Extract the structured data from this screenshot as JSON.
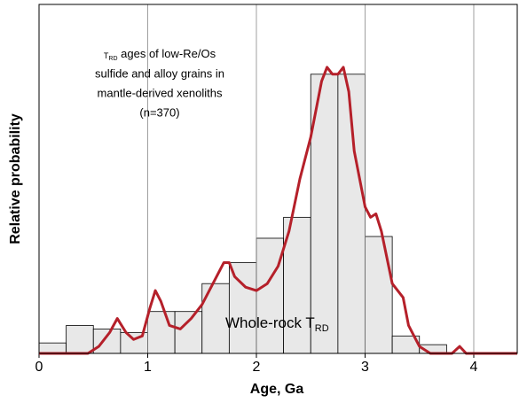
{
  "chart_data": {
    "type": "histogram",
    "xlabel": "Age, Ga",
    "ylabel": "Relative probability",
    "bins": [
      0,
      0.25,
      0.5,
      0.75,
      1.0,
      1.25,
      1.5,
      1.75,
      2.0,
      2.25,
      2.5,
      2.75,
      3.0,
      3.25,
      3.5,
      3.75
    ],
    "counts": [
      3,
      8,
      7,
      6,
      12,
      12,
      20,
      26,
      33,
      39,
      80,
      80,
      33.5,
      5,
      2.5
    ],
    "hist_color": "#e8e8e8",
    "curve": {
      "color": "#b5202a",
      "x": [
        0,
        0.45,
        0.55,
        0.65,
        0.72,
        0.8,
        0.87,
        0.95,
        1.02,
        1.07,
        1.12,
        1.2,
        1.3,
        1.4,
        1.5,
        1.6,
        1.7,
        1.75,
        1.8,
        1.9,
        2.0,
        2.1,
        2.2,
        2.3,
        2.4,
        2.5,
        2.6,
        2.65,
        2.7,
        2.75,
        2.8,
        2.85,
        2.9,
        3.0,
        3.05,
        3.1,
        3.15,
        3.25,
        3.35,
        3.4,
        3.5,
        3.6,
        3.8,
        3.87,
        3.93,
        4.4
      ],
      "values": [
        0,
        0,
        2,
        6,
        10,
        6,
        4,
        5,
        13,
        18,
        15,
        8,
        7,
        10,
        14,
        20,
        26,
        26,
        22,
        19,
        18,
        20,
        25,
        35,
        50,
        62,
        78,
        82,
        80,
        80,
        82,
        75,
        58,
        42,
        39,
        40,
        35,
        20,
        16,
        8,
        2,
        0,
        0,
        2,
        0,
        0
      ]
    },
    "xlim": [
      0,
      4.4
    ],
    "xticks": [
      0,
      1,
      2,
      3,
      4
    ],
    "ylim": [
      0,
      100
    ],
    "grid": true,
    "annotation": {
      "symbol": "T",
      "subscript": "RD",
      "first": " ages of low-Re/Os",
      "lines": [
        "sulfide and alloy grains in",
        "mantle-derived xenoliths",
        "(n=370)"
      ]
    },
    "label": {
      "text": "Whole-rock T",
      "subscript": "RD"
    }
  }
}
